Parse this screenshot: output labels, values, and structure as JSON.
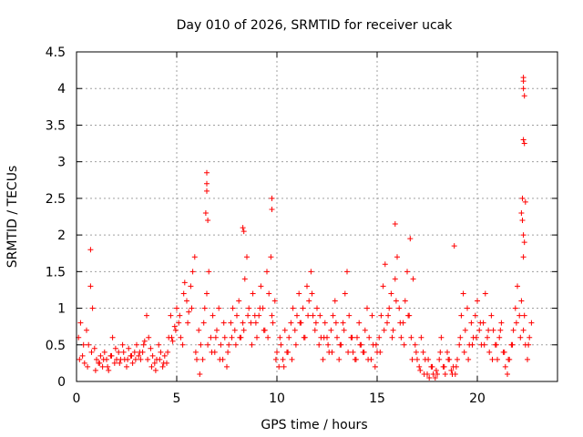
{
  "chart_data": {
    "type": "scatter",
    "title": "Day 010 of 2026, SRMTID for receiver ucak",
    "xlabel": "GPS time / hours",
    "ylabel": "SRMTID / TECUs",
    "xlim": [
      0,
      24
    ],
    "ylim": [
      0,
      4.5
    ],
    "x_ticks": [
      0,
      5,
      10,
      15,
      20
    ],
    "y_ticks": [
      0,
      0.5,
      1,
      1.5,
      2,
      2.5,
      3,
      3.5,
      4,
      4.5
    ],
    "x_tick_labels": [
      "0",
      "5",
      "10",
      "15",
      "20"
    ],
    "y_tick_labels": [
      "0",
      "0.5",
      "1",
      "1.5",
      "2",
      "2.5",
      "3",
      "3.5",
      "4",
      "4.5"
    ],
    "grid": true,
    "marker": "+",
    "color": "#ff0000",
    "series": [
      {
        "name": "SRMTID",
        "x": [
          0.1,
          0.2,
          0.3,
          0.4,
          0.5,
          0.6,
          0.7,
          0.8,
          0.9,
          1.0,
          1.1,
          1.2,
          1.3,
          1.4,
          1.5,
          1.6,
          1.7,
          1.8,
          1.9,
          2.0,
          2.1,
          2.2,
          2.3,
          2.4,
          2.5,
          2.6,
          2.7,
          2.8,
          2.9,
          3.0,
          3.1,
          3.2,
          3.3,
          3.4,
          3.5,
          3.6,
          3.7,
          3.8,
          3.9,
          4.0,
          4.1,
          4.2,
          4.3,
          4.4,
          4.5,
          4.6,
          4.7,
          4.8,
          4.9,
          5.0,
          5.1,
          5.2,
          5.3,
          5.4,
          5.5,
          5.6,
          5.7,
          5.8,
          5.9,
          6.0,
          6.1,
          6.2,
          6.3,
          6.4,
          6.5,
          6.6,
          6.7,
          6.8,
          6.9,
          7.0,
          7.1,
          7.2,
          7.3,
          7.4,
          7.5,
          7.6,
          7.7,
          7.8,
          7.9,
          8.0,
          8.1,
          8.2,
          8.3,
          8.4,
          8.5,
          8.6,
          8.7,
          8.8,
          8.9,
          9.0,
          9.1,
          9.2,
          9.3,
          9.4,
          9.5,
          9.6,
          9.7,
          9.8,
          9.9,
          10.0,
          10.1,
          10.2,
          10.3,
          10.4,
          10.5,
          10.6,
          10.7,
          10.8,
          10.9,
          11.0,
          11.1,
          11.2,
          11.3,
          11.4,
          11.5,
          11.6,
          11.7,
          11.8,
          11.9,
          12.0,
          12.1,
          12.2,
          12.3,
          12.4,
          12.5,
          12.6,
          12.7,
          12.8,
          12.9,
          13.0,
          13.1,
          13.2,
          13.3,
          13.4,
          13.5,
          13.6,
          13.7,
          13.8,
          13.9,
          14.0,
          14.1,
          14.2,
          14.3,
          14.4,
          14.5,
          14.6,
          14.7,
          14.8,
          14.9,
          15.0,
          15.1,
          15.2,
          15.3,
          15.4,
          15.5,
          15.6,
          15.7,
          15.8,
          15.9,
          16.0,
          16.1,
          16.2,
          16.3,
          16.4,
          16.5,
          16.6,
          16.7,
          16.8,
          16.9,
          17.0,
          17.1,
          17.2,
          17.3,
          17.4,
          17.5,
          17.6,
          17.7,
          17.8,
          17.9,
          18.0,
          18.1,
          18.2,
          18.3,
          18.4,
          18.5,
          18.6,
          18.7,
          18.8,
          18.9,
          19.0,
          19.1,
          19.2,
          19.3,
          19.4,
          19.5,
          19.6,
          19.7,
          19.8,
          19.9,
          20.0,
          20.1,
          20.2,
          20.3,
          20.4,
          20.5,
          20.6,
          20.7,
          20.8,
          20.9,
          21.0,
          21.1,
          21.2,
          21.3,
          21.4,
          21.5,
          21.6,
          21.7,
          21.8,
          21.9,
          22.0,
          22.1,
          22.2,
          22.3,
          22.4,
          22.5,
          22.6,
          22.7,
          0.15,
          0.35,
          0.55,
          0.75,
          0.95,
          1.15,
          1.35,
          1.55,
          1.75,
          1.95,
          2.15,
          2.35,
          2.55,
          2.75,
          2.95,
          3.15,
          3.35,
          3.55,
          3.75,
          3.95,
          4.15,
          4.35,
          4.55,
          4.75,
          4.95,
          5.15,
          5.35,
          5.55,
          5.75,
          5.95,
          6.15,
          6.35,
          6.55,
          6.75,
          6.95,
          7.15,
          7.35,
          7.55,
          7.75,
          7.95,
          8.15,
          8.35,
          8.55,
          8.75,
          8.95,
          9.15,
          9.35,
          9.55,
          9.75,
          9.95,
          10.15,
          10.35,
          10.55,
          10.75,
          10.95,
          11.15,
          11.35,
          11.55,
          11.75,
          11.95,
          12.15,
          12.35,
          12.55,
          12.75,
          12.95,
          13.15,
          13.35,
          13.55,
          13.75,
          13.95,
          14.15,
          14.35,
          14.55,
          14.75,
          14.95,
          15.15,
          15.35,
          15.55,
          15.75,
          15.95,
          16.15,
          16.35,
          16.55,
          16.75,
          16.95,
          17.15,
          17.35,
          17.55,
          17.75,
          17.95,
          18.15,
          18.35,
          18.55,
          18.75,
          18.95,
          19.15,
          19.35,
          19.55,
          19.75,
          19.95,
          20.15,
          20.35,
          20.55,
          20.75,
          20.95,
          21.15,
          21.35,
          21.55,
          21.75,
          21.95,
          22.15,
          22.35,
          22.55,
          0.7,
          6.5,
          6.5,
          6.5,
          6.45,
          6.55,
          9.75,
          9.75,
          8.3,
          8.35,
          15.9,
          16.65,
          18.85,
          22.3,
          22.3,
          22.3,
          22.35,
          22.3,
          22.35,
          22.25,
          22.4,
          22.2,
          22.25,
          22.3,
          22.35,
          22.3
        ],
        "y": [
          0.6,
          0.8,
          0.35,
          0.25,
          0.7,
          0.5,
          1.3,
          1.0,
          0.45,
          0.3,
          0.25,
          0.35,
          0.2,
          0.4,
          0.3,
          0.15,
          0.35,
          0.6,
          0.25,
          0.3,
          0.4,
          0.3,
          0.5,
          0.3,
          0.2,
          0.45,
          0.35,
          0.25,
          0.4,
          0.5,
          0.35,
          0.3,
          0.4,
          0.55,
          0.9,
          0.6,
          0.45,
          0.35,
          0.25,
          0.3,
          0.5,
          0.4,
          0.2,
          0.35,
          0.25,
          0.6,
          0.9,
          0.55,
          0.75,
          1.0,
          0.8,
          0.6,
          0.5,
          1.35,
          1.1,
          0.95,
          1.3,
          1.5,
          1.7,
          0.3,
          0.7,
          0.5,
          0.3,
          1.0,
          1.2,
          1.5,
          0.6,
          0.9,
          0.4,
          0.7,
          1.0,
          0.5,
          0.3,
          0.6,
          0.2,
          0.5,
          0.8,
          1.0,
          0.7,
          0.9,
          1.1,
          0.6,
          0.8,
          1.4,
          1.7,
          1.0,
          0.8,
          1.2,
          0.9,
          0.6,
          0.9,
          1.3,
          1.0,
          0.7,
          1.5,
          1.2,
          1.7,
          0.8,
          1.1,
          0.4,
          0.2,
          0.5,
          0.3,
          0.7,
          0.4,
          0.6,
          0.8,
          1.0,
          0.7,
          0.9,
          1.2,
          0.8,
          1.0,
          0.6,
          1.3,
          1.1,
          1.5,
          0.9,
          0.7,
          1.0,
          0.5,
          0.6,
          0.3,
          0.8,
          0.6,
          0.4,
          0.7,
          0.9,
          1.1,
          0.6,
          0.3,
          0.5,
          0.8,
          1.2,
          1.5,
          0.9,
          0.6,
          0.4,
          0.3,
          0.6,
          0.8,
          0.5,
          0.4,
          0.7,
          1.0,
          0.6,
          0.3,
          0.5,
          0.2,
          0.4,
          0.6,
          0.9,
          1.3,
          1.6,
          0.8,
          1.0,
          1.2,
          0.7,
          1.4,
          1.7,
          1.0,
          0.6,
          0.8,
          1.1,
          1.5,
          0.9,
          0.6,
          1.4,
          0.5,
          0.3,
          0.2,
          0.6,
          0.4,
          0.3,
          0.1,
          0.05,
          0.2,
          0.1,
          0.05,
          0.1,
          0.3,
          0.6,
          0.2,
          0.1,
          0.4,
          0.3,
          0.15,
          0.2,
          0.1,
          0.3,
          0.5,
          0.9,
          1.2,
          0.7,
          1.0,
          0.5,
          0.8,
          0.6,
          0.9,
          1.1,
          0.7,
          0.5,
          0.8,
          1.2,
          0.6,
          0.4,
          0.9,
          0.7,
          0.5,
          0.3,
          0.6,
          0.8,
          0.4,
          0.2,
          0.1,
          0.3,
          0.5,
          0.7,
          1.0,
          1.3,
          0.9,
          1.1,
          0.7,
          0.5,
          0.3,
          0.6,
          0.8,
          0.3,
          0.5,
          0.2,
          0.4,
          0.15,
          0.25,
          0.3,
          0.2,
          0.35,
          0.45,
          0.25,
          0.4,
          0.3,
          0.35,
          0.3,
          0.4,
          0.5,
          0.3,
          0.2,
          0.15,
          0.3,
          0.25,
          0.4,
          0.6,
          0.7,
          0.9,
          1.2,
          0.8,
          1.0,
          0.4,
          0.1,
          0.8,
          0.5,
          0.4,
          0.6,
          0.3,
          0.8,
          0.4,
          0.6,
          0.5,
          0.6,
          0.7,
          0.9,
          0.5,
          0.8,
          1.0,
          0.7,
          0.6,
          0.9,
          0.3,
          0.6,
          0.2,
          0.4,
          0.3,
          0.5,
          0.8,
          0.6,
          0.9,
          1.2,
          0.8,
          0.9,
          0.6,
          0.5,
          0.4,
          0.8,
          0.5,
          0.7,
          0.4,
          0.6,
          0.3,
          0.5,
          0.4,
          0.3,
          0.9,
          0.5,
          0.4,
          0.7,
          0.9,
          0.6,
          1.1,
          0.8,
          0.5,
          0.9,
          0.3,
          0.4,
          0.15,
          0.1,
          0.3,
          0.2,
          0.15,
          0.4,
          0.2,
          0.3,
          0.1,
          0.2,
          0.6,
          0.4,
          0.3,
          0.5,
          0.6,
          0.8,
          0.5,
          0.7,
          0.3,
          0.5,
          0.7,
          0.4,
          0.3,
          0.5,
          0.8,
          0.6,
          0.9,
          0.5,
          1.8,
          2.85,
          2.7,
          2.6,
          2.3,
          2.2,
          2.5,
          2.35,
          2.1,
          2.05,
          2.15,
          1.95,
          1.85,
          4.15,
          4.1,
          4.0,
          3.9,
          3.3,
          3.25,
          2.5,
          2.45,
          2.3,
          2.2,
          2.0,
          1.9,
          1.7
        ]
      }
    ]
  }
}
